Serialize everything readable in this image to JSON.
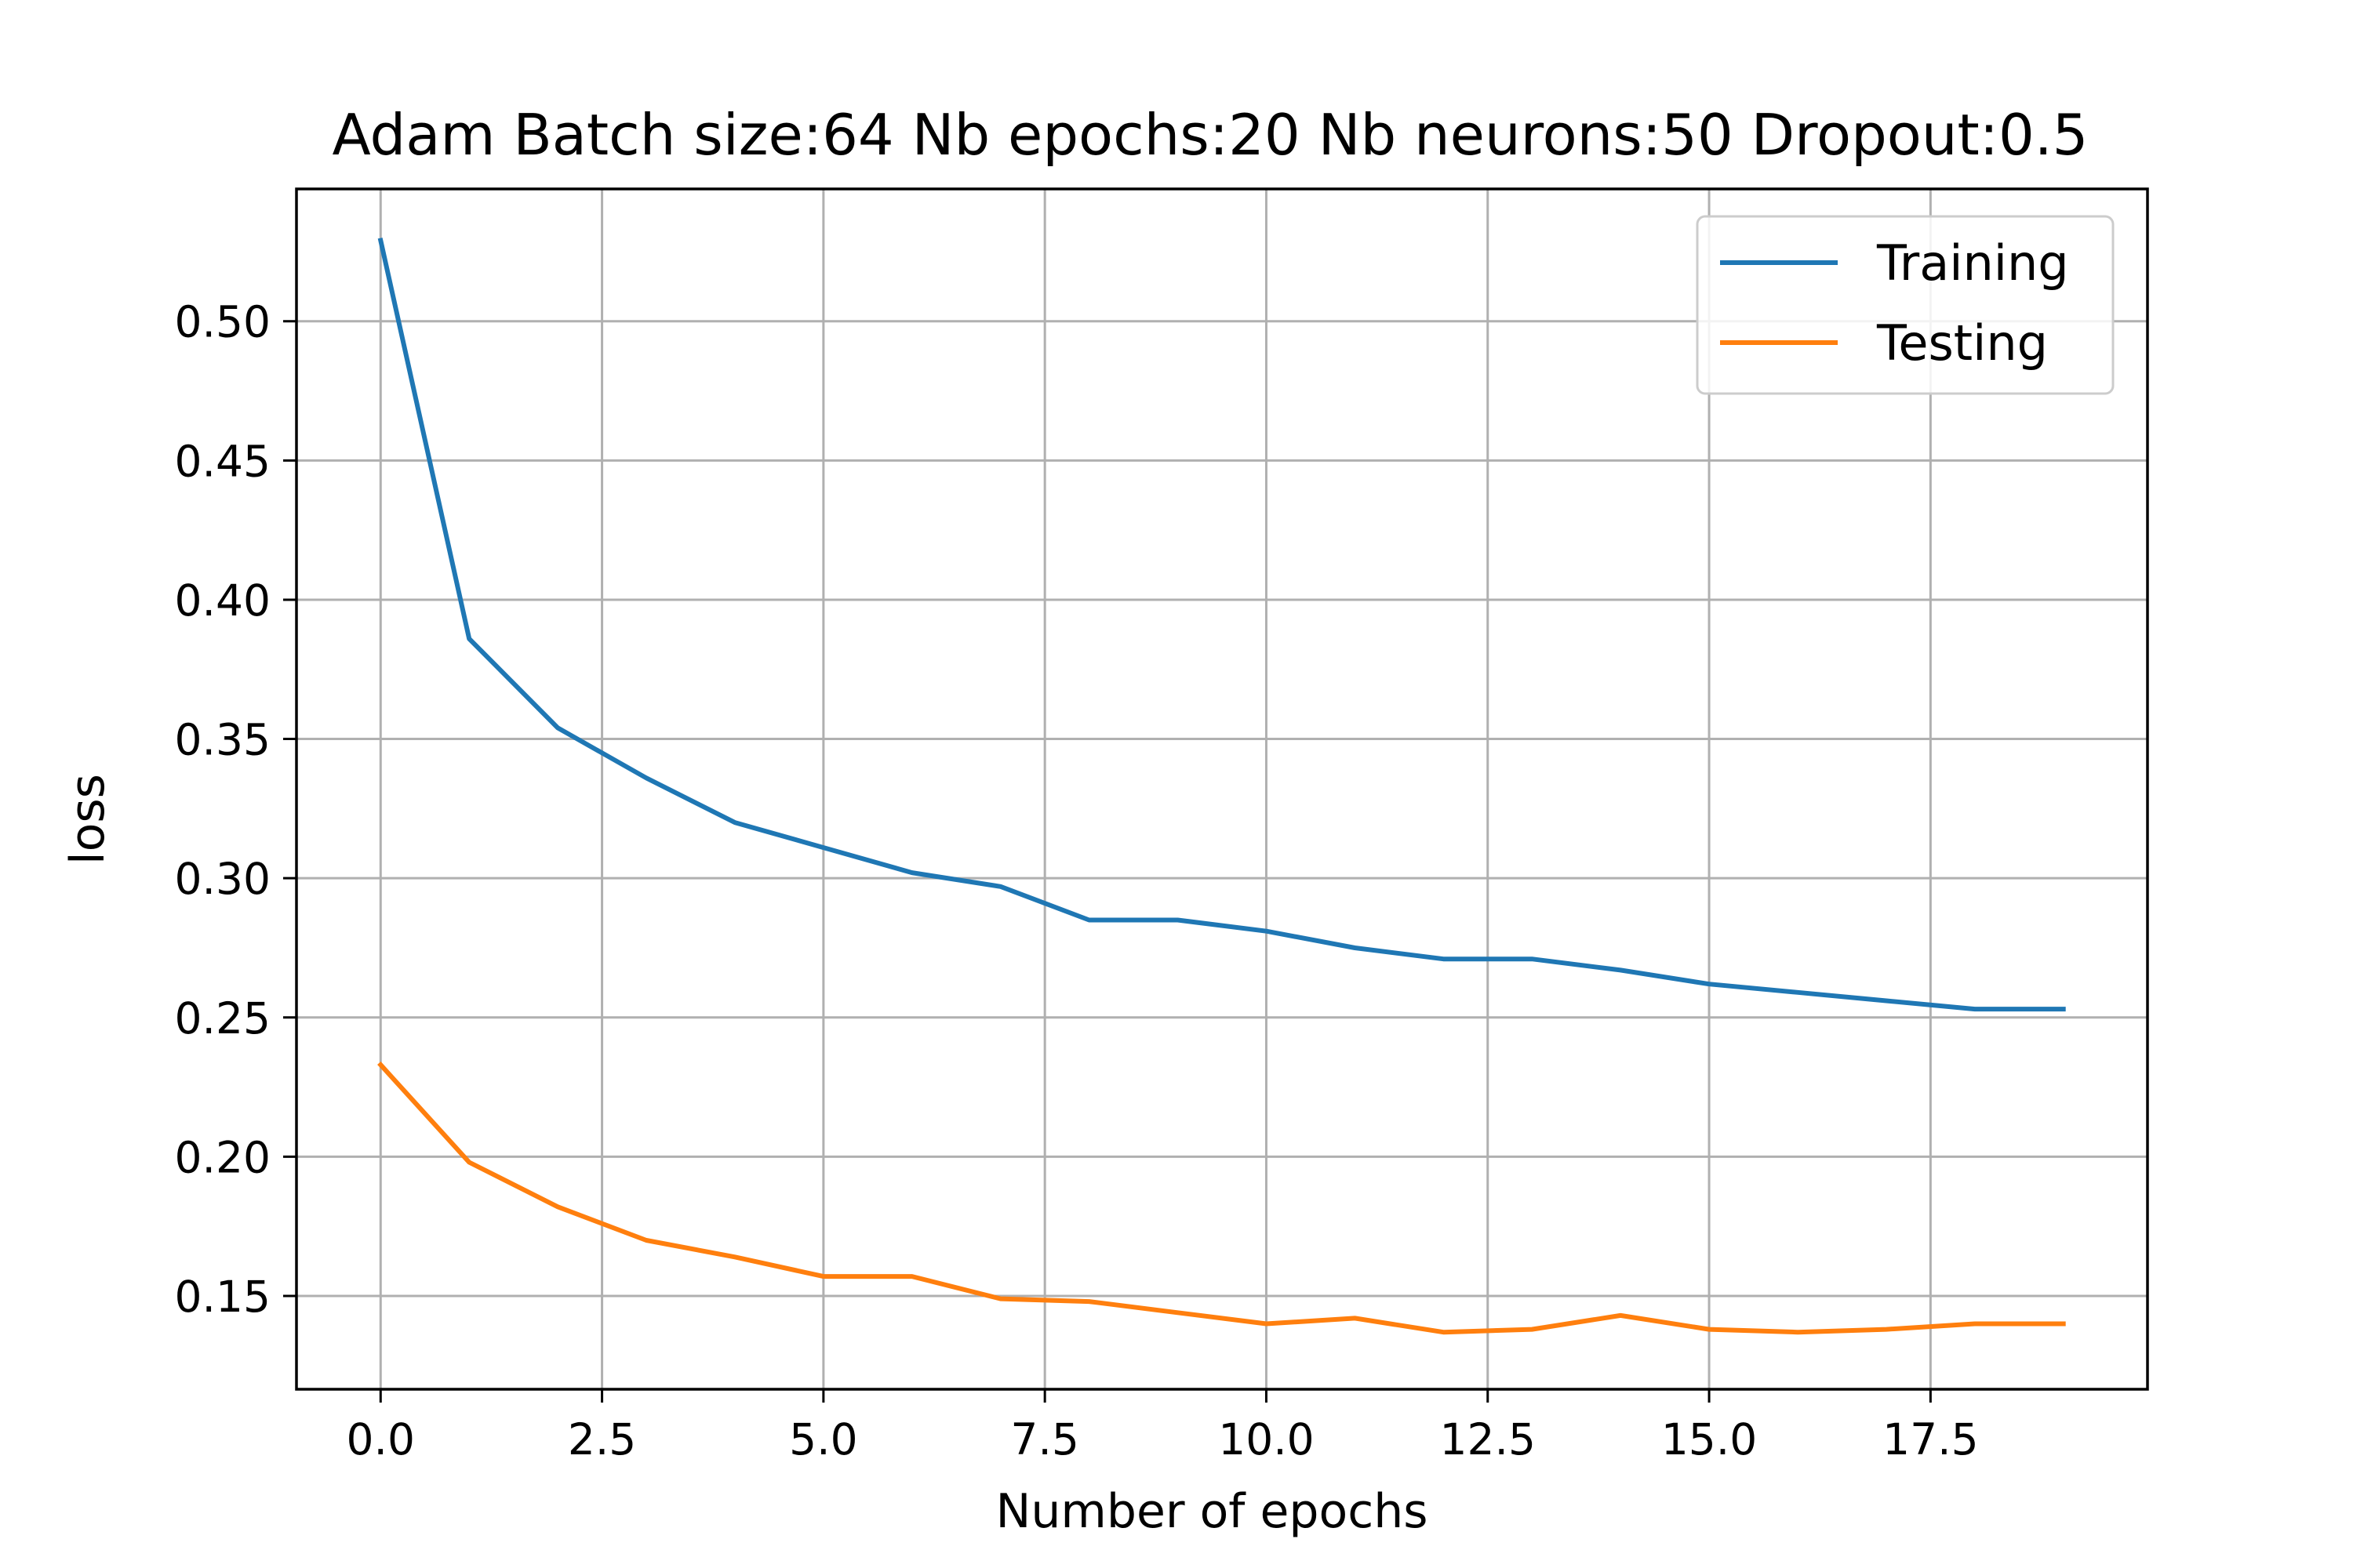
{
  "chart_data": {
    "type": "line",
    "title": "Adam Batch size:64 Nb epochs:20 Nb neurons:50 Dropout:0.5",
    "xlabel": "Number of epochs",
    "ylabel": "loss",
    "xlim": [
      -0.95,
      19.95
    ],
    "ylim": [
      0.1165,
      0.5475
    ],
    "x_ticks": [
      0.0,
      2.5,
      5.0,
      7.5,
      10.0,
      12.5,
      15.0,
      17.5
    ],
    "x_tick_labels": [
      "0.0",
      "2.5",
      "5.0",
      "7.5",
      "10.0",
      "12.5",
      "15.0",
      "17.5"
    ],
    "y_ticks": [
      0.15,
      0.2,
      0.25,
      0.3,
      0.35,
      0.4,
      0.45,
      0.5
    ],
    "y_tick_labels": [
      "0.15",
      "0.20",
      "0.25",
      "0.30",
      "0.35",
      "0.40",
      "0.45",
      "0.50"
    ],
    "grid": true,
    "legend_position": "top-right",
    "x": [
      0,
      1,
      2,
      3,
      4,
      5,
      6,
      7,
      8,
      9,
      10,
      11,
      12,
      13,
      14,
      15,
      16,
      17,
      18,
      19
    ],
    "series": [
      {
        "name": "Training",
        "color": "#1f77b4",
        "values": [
          0.529,
          0.386,
          0.354,
          0.336,
          0.32,
          0.311,
          0.302,
          0.297,
          0.285,
          0.285,
          0.281,
          0.275,
          0.271,
          0.271,
          0.267,
          0.262,
          0.259,
          0.256,
          0.253,
          0.253
        ]
      },
      {
        "name": "Testing",
        "color": "#ff7f0e",
        "values": [
          0.233,
          0.198,
          0.182,
          0.17,
          0.164,
          0.157,
          0.157,
          0.149,
          0.148,
          0.144,
          0.14,
          0.142,
          0.137,
          0.138,
          0.143,
          0.138,
          0.137,
          0.138,
          0.14,
          0.14
        ]
      }
    ]
  }
}
